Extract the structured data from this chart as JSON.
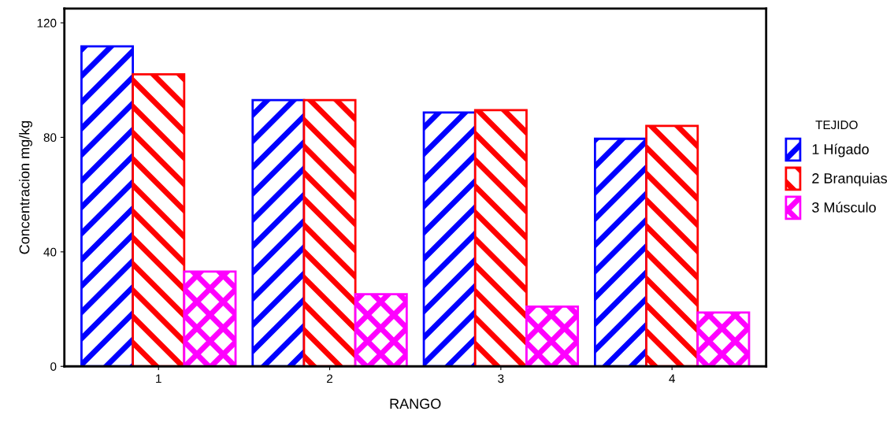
{
  "chart_data": {
    "type": "bar",
    "xlabel": "RANGO",
    "ylabel": "Concentracion mg/kg",
    "legend_title": "TEJIDO",
    "categories": [
      "1",
      "2",
      "3",
      "4"
    ],
    "series": [
      {
        "name": "1 Hígado",
        "color": "#0000ff",
        "values": [
          111.8,
          93,
          88.7,
          79.5
        ]
      },
      {
        "name": "2 Branquias",
        "color": "#ff0000",
        "values": [
          102,
          93,
          89.5,
          84
        ]
      },
      {
        "name": "3 Músculo",
        "color": "#ff00ff",
        "values": [
          33.1,
          25.2,
          20.9,
          18.8
        ]
      }
    ],
    "ylim": [
      0,
      125
    ],
    "yticks": [
      0,
      40,
      80,
      120
    ],
    "grid": false,
    "legend": "right"
  }
}
